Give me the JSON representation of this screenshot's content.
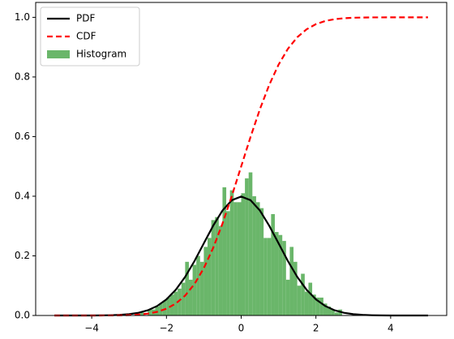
{
  "chart_data": {
    "type": "histogram-lines",
    "xlim": [
      -5.5,
      5.5
    ],
    "ylim": [
      0,
      1.05
    ],
    "xticks": [
      {
        "value": -4,
        "label": "−4"
      },
      {
        "value": -2,
        "label": "−2"
      },
      0,
      2,
      4
    ],
    "yticks": [
      {
        "value": 0,
        "label": "0.0"
      },
      0.2,
      0.4,
      0.6,
      0.8,
      {
        "value": 1,
        "label": "1.0"
      }
    ],
    "legend": "upper left",
    "histogram": {
      "name": "Histogram",
      "color": "#5aae5a",
      "bins": [
        -2.8,
        -2.7,
        -2.6,
        -2.5,
        -2.4,
        -2.3,
        -2.2,
        -2.1,
        -2.0,
        -1.9,
        -1.8,
        -1.7,
        -1.6,
        -1.5,
        -1.4,
        -1.3,
        -1.2,
        -1.1,
        -1.0,
        -0.9,
        -0.8,
        -0.7,
        -0.6,
        -0.5,
        -0.4,
        -0.3,
        -0.2,
        -0.1,
        0.0,
        0.1,
        0.2,
        0.3,
        0.4,
        0.5,
        0.6,
        0.7,
        0.8,
        0.9,
        1.0,
        1.1,
        1.2,
        1.3,
        1.4,
        1.5,
        1.6,
        1.7,
        1.8,
        1.9,
        2.0,
        2.1,
        2.2,
        2.3,
        2.4,
        2.5,
        2.6,
        2.7,
        2.8
      ],
      "values": [
        0,
        0.01,
        0,
        0.02,
        0.02,
        0.03,
        0.04,
        0.05,
        0.06,
        0.07,
        0.08,
        0.09,
        0.11,
        0.18,
        0.12,
        0.17,
        0.2,
        0.18,
        0.23,
        0.26,
        0.32,
        0.33,
        0.3,
        0.43,
        0.35,
        0.42,
        0.38,
        0.38,
        0.41,
        0.46,
        0.48,
        0.4,
        0.38,
        0.36,
        0.26,
        0.26,
        0.34,
        0.28,
        0.27,
        0.25,
        0.12,
        0.23,
        0.18,
        0.1,
        0.14,
        0.08,
        0.11,
        0.07,
        0.06,
        0.06,
        0.04,
        0.03,
        0.02,
        0.01,
        0.02,
        0
      ]
    },
    "x": [
      -5,
      -4.75,
      -4.5,
      -4.25,
      -4,
      -3.75,
      -3.5,
      -3.25,
      -3,
      -2.75,
      -2.5,
      -2.25,
      -2,
      -1.75,
      -1.5,
      -1.25,
      -1,
      -0.75,
      -0.5,
      -0.25,
      0,
      0.25,
      0.5,
      0.75,
      1,
      1.25,
      1.5,
      1.75,
      2,
      2.25,
      2.5,
      2.75,
      3,
      3.25,
      3.5,
      3.75,
      4,
      4.25,
      4.5,
      4.75,
      5
    ],
    "series": [
      {
        "name": "PDF",
        "color": "#000000",
        "dash": "solid",
        "values": [
          0,
          0,
          0,
          0,
          0.0001,
          0.0004,
          0.0009,
          0.002,
          0.0044,
          0.0091,
          0.0175,
          0.0317,
          0.054,
          0.0863,
          0.1295,
          0.1826,
          0.242,
          0.3011,
          0.3521,
          0.3867,
          0.3989,
          0.3867,
          0.3521,
          0.3011,
          0.242,
          0.1826,
          0.1295,
          0.0863,
          0.054,
          0.0317,
          0.0175,
          0.0091,
          0.0044,
          0.002,
          0.0009,
          0.0004,
          0.0001,
          0,
          0,
          0,
          0
        ]
      },
      {
        "name": "CDF",
        "color": "#ff0000",
        "dash": "dashed",
        "values": [
          0,
          0,
          0,
          0,
          0,
          0.0001,
          0.0002,
          0.0006,
          0.0013,
          0.003,
          0.0062,
          0.0122,
          0.0228,
          0.0401,
          0.0668,
          0.1056,
          0.1587,
          0.2266,
          0.3085,
          0.4013,
          0.5,
          0.5987,
          0.6915,
          0.7734,
          0.8413,
          0.8944,
          0.9332,
          0.9599,
          0.9772,
          0.9878,
          0.9938,
          0.997,
          0.9987,
          0.9994,
          0.9998,
          0.9999,
          1,
          1,
          1,
          1,
          1
        ]
      }
    ]
  }
}
